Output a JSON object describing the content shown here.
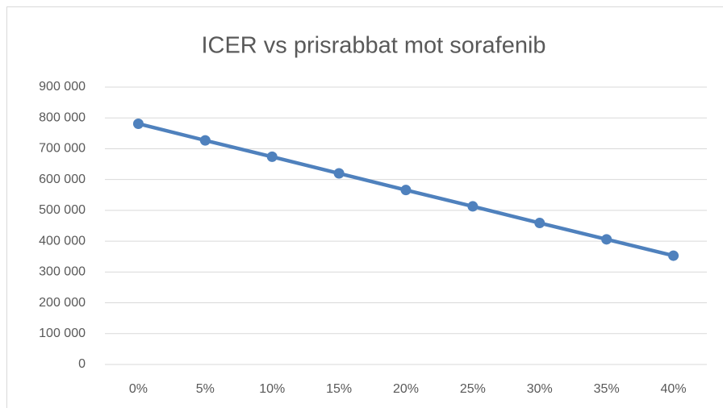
{
  "chart_data": {
    "type": "line",
    "title": "ICER vs prisrabbat mot sorafenib",
    "categories": [
      "0%",
      "5%",
      "10%",
      "15%",
      "20%",
      "25%",
      "30%",
      "35%",
      "40%"
    ],
    "series": [
      {
        "color": "#4f81bd",
        "values": [
          781000,
          727000,
          674000,
          620000,
          566000,
          513000,
          459000,
          406000,
          353000
        ]
      }
    ],
    "ylim": [
      0,
      900000
    ],
    "yticks": [
      0,
      {
        "value": 100000,
        "label": "100 000"
      },
      {
        "value": 200000,
        "label": "200 000"
      },
      {
        "value": 300000,
        "label": "300 000"
      },
      {
        "value": 400000,
        "label": "400 000"
      },
      {
        "value": 500000,
        "label": "500 000"
      },
      {
        "value": 600000,
        "label": "600 000"
      },
      {
        "value": 700000,
        "label": "700 000"
      },
      {
        "value": 800000,
        "label": "800 000"
      },
      {
        "value": 900000,
        "label": "900 000"
      }
    ],
    "grid": true
  }
}
